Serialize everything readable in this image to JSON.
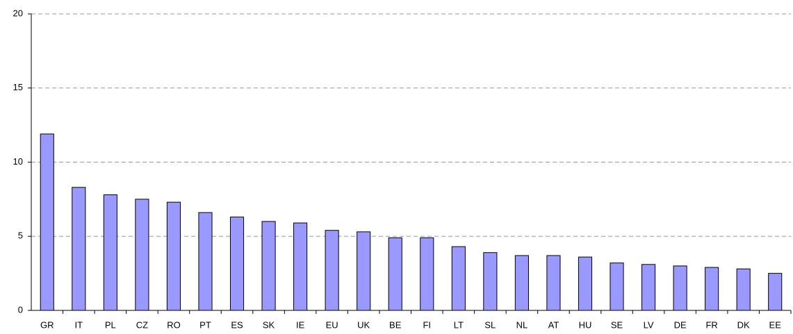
{
  "chart_data": {
    "type": "bar",
    "categories": [
      "GR",
      "IT",
      "PL",
      "CZ",
      "RO",
      "PT",
      "ES",
      "SK",
      "IE",
      "EU",
      "UK",
      "BE",
      "FI",
      "LT",
      "SL",
      "NL",
      "AT",
      "HU",
      "SE",
      "LV",
      "DE",
      "FR",
      "DK",
      "EE"
    ],
    "values": [
      11.9,
      8.3,
      7.8,
      7.5,
      7.3,
      6.6,
      6.3,
      6.0,
      5.9,
      5.4,
      5.3,
      4.9,
      4.9,
      4.3,
      3.9,
      3.7,
      3.7,
      3.6,
      3.2,
      3.1,
      3.0,
      2.9,
      2.8,
      2.5
    ],
    "color": "#9999ff",
    "ylim": [
      0,
      20
    ],
    "yticks": [
      0,
      5,
      10,
      15,
      20
    ],
    "grid": true
  }
}
